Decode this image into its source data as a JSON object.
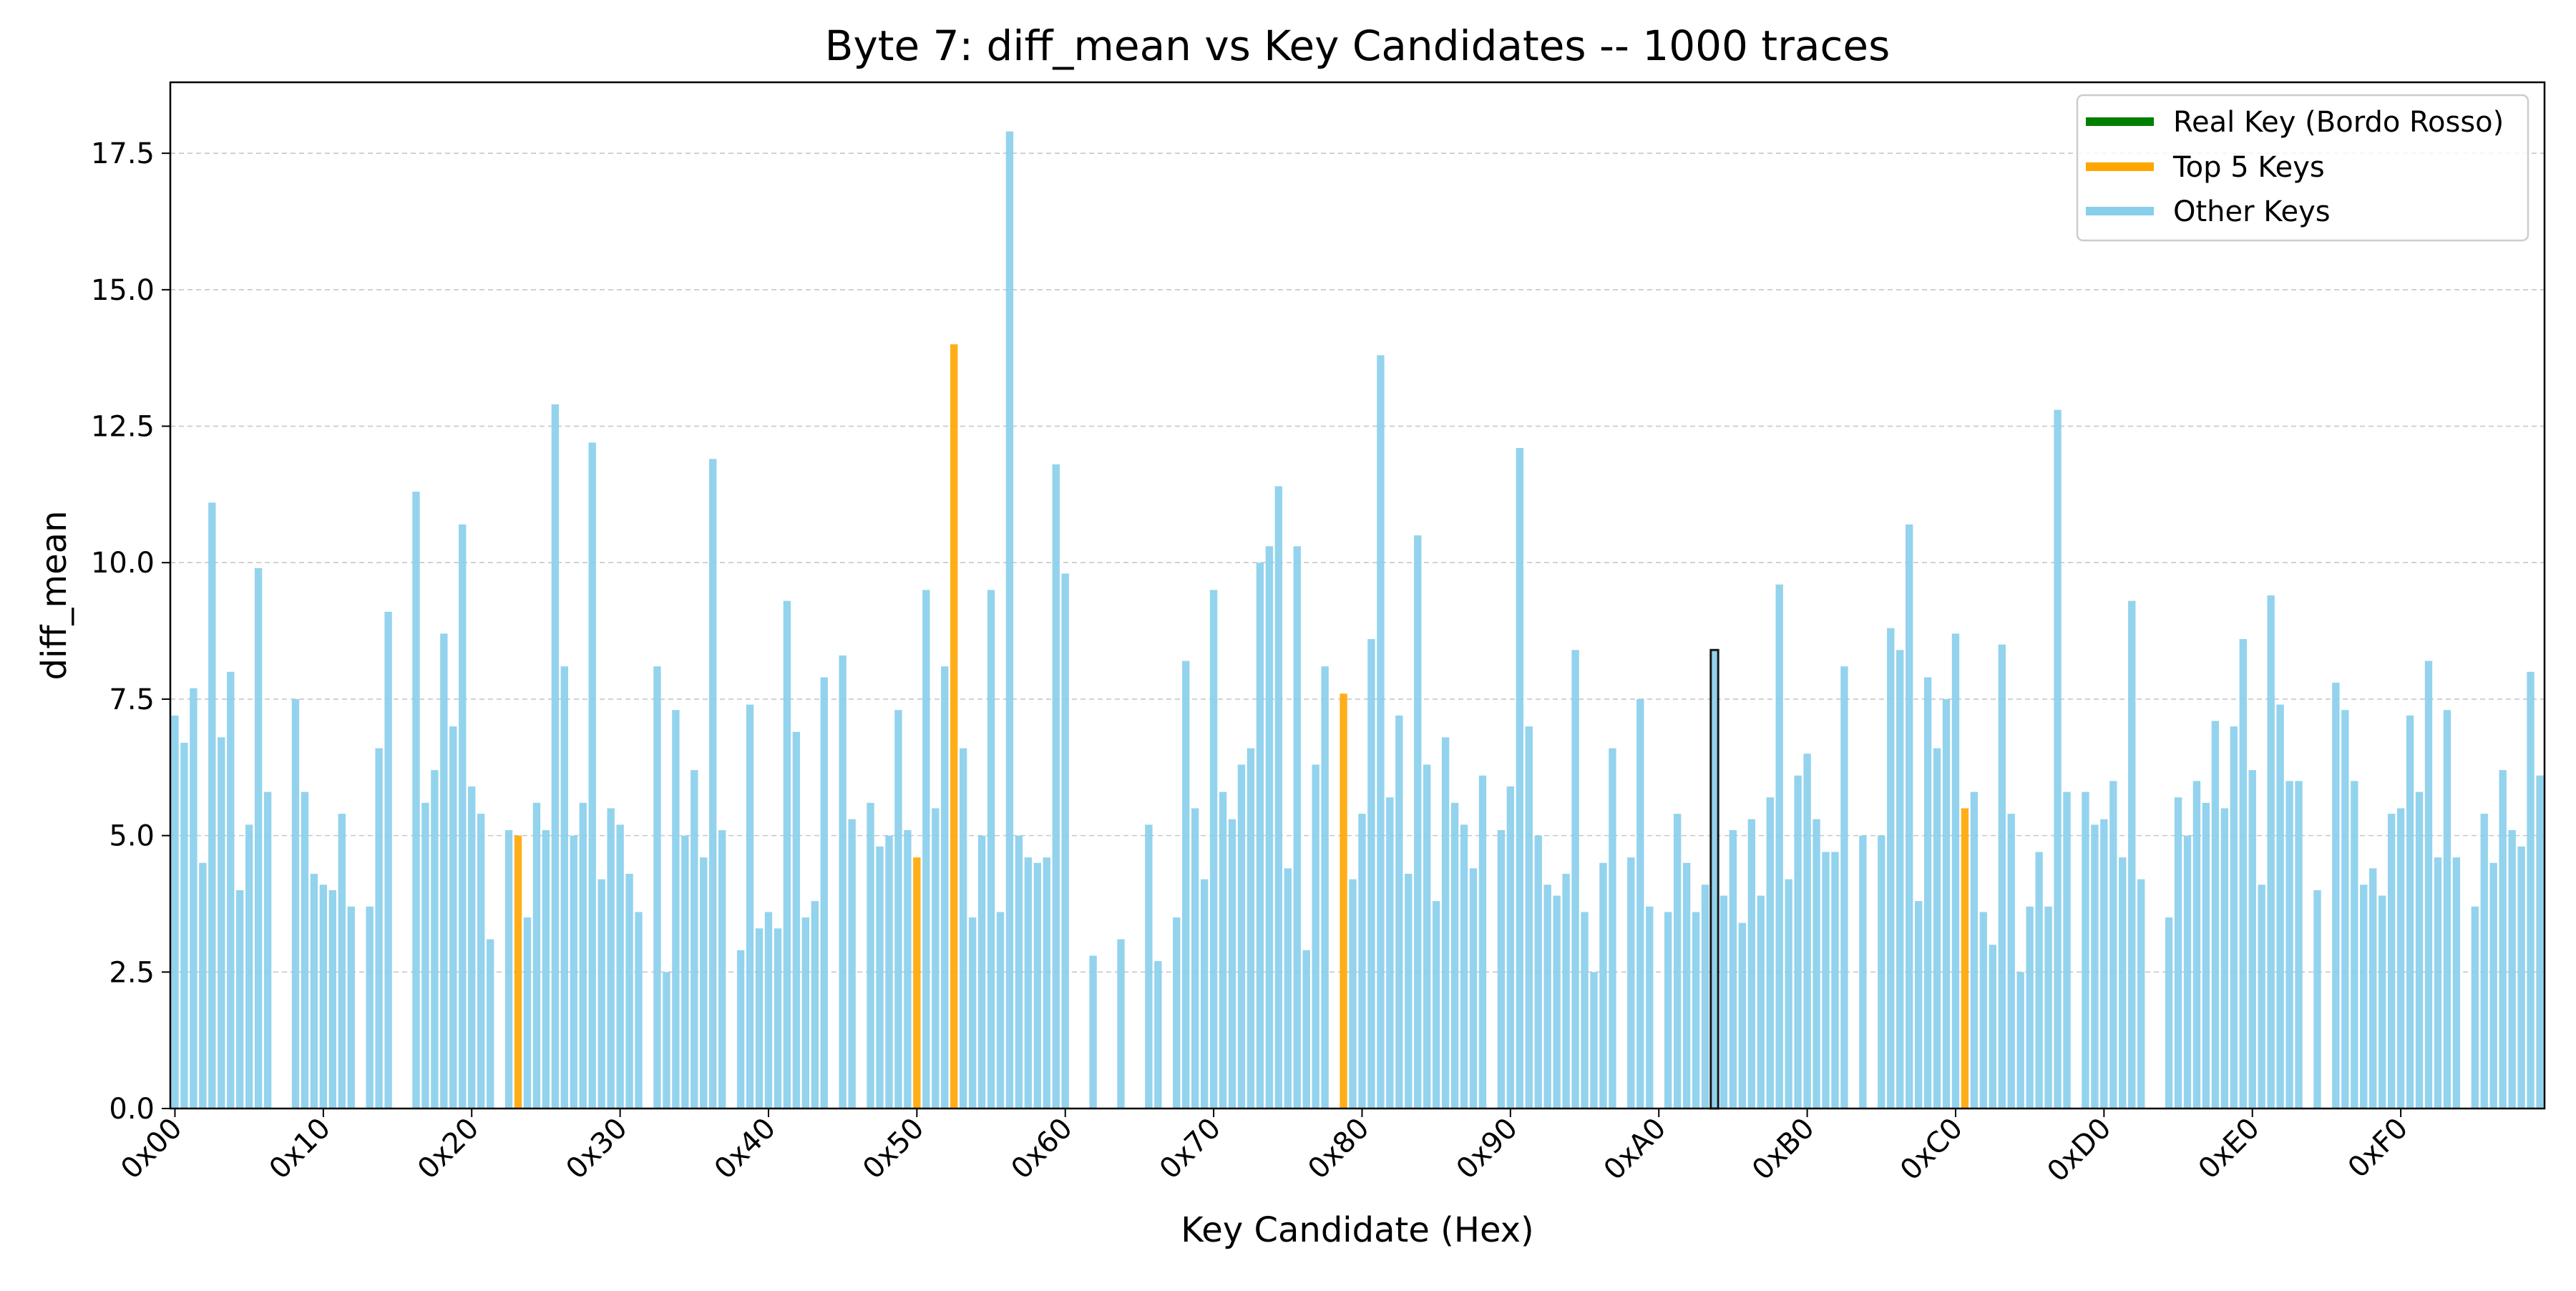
{
  "chart_data": {
    "type": "bar",
    "title": "Byte 7: diff_mean vs Key Candidates -- 1000 traces",
    "xlabel": "Key Candidate (Hex)",
    "ylabel": "diff_mean",
    "ylim": [
      0,
      18.8
    ],
    "xlim": [
      -0.5,
      255.5
    ],
    "yticks": [
      "0.0",
      "2.5",
      "5.0",
      "7.5",
      "10.0",
      "12.5",
      "15.0",
      "17.5"
    ],
    "xticks": [
      {
        "label": "0x00",
        "value": 0
      },
      {
        "label": "0x10",
        "value": 16
      },
      {
        "label": "0x20",
        "value": 32
      },
      {
        "label": "0x30",
        "value": 48
      },
      {
        "label": "0x40",
        "value": 64
      },
      {
        "label": "0x50",
        "value": 80
      },
      {
        "label": "0x60",
        "value": 96
      },
      {
        "label": "0x70",
        "value": 112
      },
      {
        "label": "0x80",
        "value": 128
      },
      {
        "label": "0x90",
        "value": 144
      },
      {
        "label": "0xA0",
        "value": 160
      },
      {
        "label": "0xB0",
        "value": 176
      },
      {
        "label": "0xC0",
        "value": 192
      },
      {
        "label": "0xD0",
        "value": 208
      },
      {
        "label": "0xE0",
        "value": 224
      },
      {
        "label": "0xF0",
        "value": 240
      }
    ],
    "grid": "y-dashed",
    "legend_position": "top-right",
    "legend": [
      {
        "label": "Real Key (Bordo Rosso)",
        "color": "#008000"
      },
      {
        "label": "Top 5 Keys",
        "color": "#ffa500"
      },
      {
        "label": "Other Keys",
        "color": "#87ceeb"
      }
    ],
    "real_key": 166,
    "top_keys": [
      37,
      80,
      84,
      126,
      193
    ],
    "values": [
      7.2,
      6.7,
      7.7,
      4.5,
      11.1,
      6.8,
      8.0,
      4.0,
      5.2,
      9.9,
      5.8,
      0,
      0,
      7.5,
      5.8,
      4.3,
      4.1,
      4.0,
      5.4,
      3.7,
      0,
      3.7,
      6.6,
      9.1,
      0,
      0,
      11.3,
      5.6,
      6.2,
      8.7,
      7.0,
      10.7,
      5.9,
      5.4,
      3.1,
      0,
      5.1,
      5.0,
      3.5,
      5.6,
      5.1,
      12.9,
      8.1,
      5.0,
      5.6,
      12.2,
      4.2,
      5.5,
      5.2,
      4.3,
      3.6,
      0,
      8.1,
      2.5,
      7.3,
      5.0,
      6.2,
      4.6,
      11.9,
      5.1,
      0,
      2.9,
      7.4,
      3.3,
      3.6,
      3.3,
      9.3,
      6.9,
      3.5,
      3.8,
      7.9,
      0,
      8.3,
      5.3,
      0,
      5.6,
      4.8,
      5.0,
      7.3,
      5.1,
      4.6,
      9.5,
      5.5,
      8.1,
      14.0,
      6.6,
      3.5,
      5.0,
      9.5,
      3.6,
      17.9,
      5.0,
      4.6,
      4.5,
      4.6,
      11.8,
      9.8,
      0,
      0,
      2.8,
      0,
      0,
      3.1,
      0,
      0,
      5.2,
      2.7,
      0,
      3.5,
      8.2,
      5.5,
      4.2,
      9.5,
      5.8,
      5.3,
      6.3,
      6.6,
      10.0,
      10.3,
      11.4,
      4.4,
      10.3,
      2.9,
      6.3,
      8.1,
      0,
      7.6,
      4.2,
      5.4,
      8.6,
      13.8,
      5.7,
      7.2,
      4.3,
      10.5,
      6.3,
      3.8,
      6.8,
      5.6,
      5.2,
      4.4,
      6.1,
      0,
      5.1,
      5.9,
      12.1,
      7.0,
      5.0,
      4.1,
      3.9,
      4.3,
      8.4,
      3.6,
      2.5,
      4.5,
      6.6,
      0,
      4.6,
      7.5,
      3.7,
      0,
      3.6,
      5.4,
      4.5,
      3.6,
      4.1,
      8.4,
      3.9,
      5.1,
      3.4,
      5.3,
      3.9,
      5.7,
      9.6,
      4.2,
      6.1,
      6.5,
      5.3,
      4.7,
      4.7,
      8.1,
      0,
      5.0,
      0,
      5.0,
      8.8,
      8.4,
      10.7,
      3.8,
      7.9,
      6.6,
      7.5,
      8.7,
      5.5,
      5.8,
      3.6,
      3.0,
      8.5,
      5.4,
      2.5,
      3.7,
      4.7,
      3.7,
      12.8,
      5.8,
      0,
      5.8,
      5.2,
      5.3,
      6.0,
      4.6,
      9.3,
      4.2,
      0,
      0,
      3.5,
      5.7,
      5.0,
      6.0,
      5.6,
      7.1,
      5.5,
      7.0,
      8.6,
      6.2,
      4.1,
      9.4,
      7.4,
      6.0,
      6.0,
      0,
      4.0,
      0,
      7.8,
      7.3,
      6.0,
      4.1,
      4.4,
      3.9,
      5.4,
      5.5,
      7.2,
      5.8,
      8.2,
      4.6,
      7.3,
      4.6,
      0,
      3.7,
      5.4,
      4.5,
      6.2,
      5.1,
      4.8,
      8.0,
      6.1
    ]
  }
}
